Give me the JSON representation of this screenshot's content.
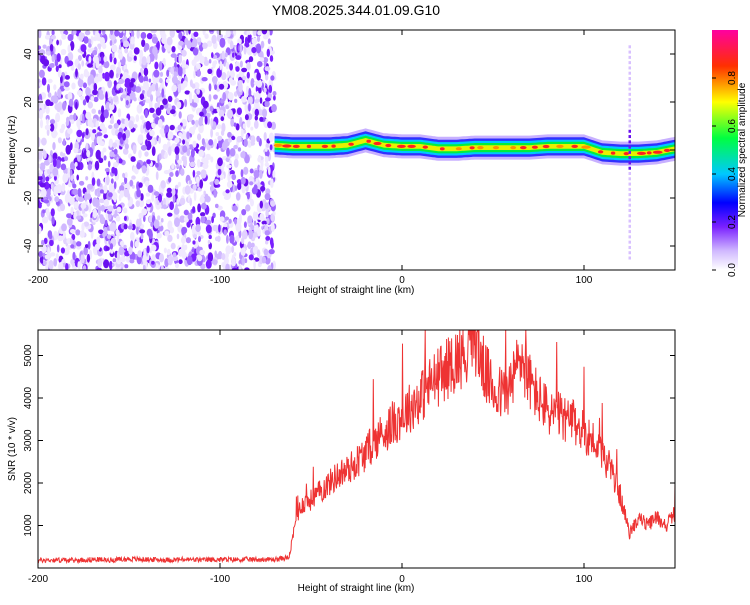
{
  "title": "YM08.2025.344.01.09.G10",
  "chart_data": [
    {
      "type": "heatmap",
      "title": "YM08.2025.344.01.09.G10",
      "xlabel": "Height of straight line (km)",
      "ylabel": "Frequency (Hz)",
      "xlim": [
        -200,
        150
      ],
      "ylim": [
        -50,
        50
      ],
      "x_ticks": [
        -200,
        -100,
        0,
        100
      ],
      "x_tick_labels": [
        "-200",
        "-100",
        "0",
        "100"
      ],
      "y_ticks": [
        -40,
        -20,
        0,
        20,
        40
      ],
      "y_tick_labels": [
        "-40",
        "-20",
        "0",
        "20",
        "40"
      ],
      "colorbar": {
        "label": "Normalized spectral amplitude",
        "range": [
          0,
          1
        ],
        "ticks": [
          0.0,
          0.2,
          0.4,
          0.6,
          0.8
        ],
        "tick_labels": [
          "0.0",
          "0.2",
          "0.4",
          "0.6",
          "0.8"
        ]
      },
      "noise_region_x": [
        -200,
        -70
      ],
      "signal_ridge": {
        "x": [
          -70,
          -60,
          -50,
          -40,
          -30,
          -20,
          -10,
          0,
          10,
          20,
          30,
          40,
          50,
          60,
          70,
          80,
          90,
          100,
          110,
          120,
          130,
          140,
          150
        ],
        "frequency": [
          2,
          1.5,
          1.5,
          1.5,
          2,
          4,
          2,
          1.5,
          1.5,
          0.5,
          0.5,
          1,
          1,
          1,
          1,
          1.5,
          1.5,
          1.5,
          -1,
          -1.5,
          -1.5,
          -1,
          0.5
        ]
      },
      "grid": false,
      "legend": "colorbar-right"
    },
    {
      "type": "line",
      "xlabel": "Height of straight line (km)",
      "ylabel": "SNR (10 * v/v)",
      "xlim": [
        -200,
        150
      ],
      "ylim": [
        0,
        5600
      ],
      "x_ticks": [
        -200,
        -100,
        0,
        100
      ],
      "x_tick_labels": [
        "-200",
        "-100",
        "0",
        "100"
      ],
      "y_ticks": [
        1000,
        2000,
        3000,
        4000,
        5000
      ],
      "y_tick_labels": [
        "1000",
        "2000",
        "3000",
        "4000",
        "5000"
      ],
      "color": "#ee3333",
      "grid": false,
      "series": [
        {
          "x": [
            -200,
            -190,
            -180,
            -170,
            -160,
            -150,
            -140,
            -130,
            -120,
            -110,
            -100,
            -90,
            -80,
            -70,
            -62,
            -58,
            -55,
            -50,
            -45,
            -40,
            -35,
            -30,
            -25,
            -20,
            -15,
            -10,
            -5,
            0,
            5,
            10,
            15,
            20,
            25,
            30,
            35,
            40,
            45,
            50,
            55,
            60,
            65,
            70,
            75,
            80,
            85,
            90,
            95,
            100,
            105,
            110,
            115,
            120,
            125,
            130,
            135,
            140,
            145,
            150
          ],
          "y": [
            180,
            190,
            180,
            200,
            190,
            210,
            200,
            190,
            200,
            190,
            200,
            200,
            200,
            200,
            250,
            1200,
            1500,
            1600,
            1800,
            2000,
            2200,
            2300,
            2500,
            2700,
            3000,
            3200,
            3400,
            3600,
            3800,
            4000,
            4300,
            4500,
            4700,
            4900,
            5100,
            5400,
            4700,
            4200,
            4100,
            4300,
            5000,
            4400,
            4000,
            3700,
            3600,
            3500,
            3400,
            3200,
            3000,
            2700,
            2300,
            1700,
            800,
            1200,
            1000,
            1200,
            1000,
            1300
          ]
        }
      ]
    }
  ]
}
